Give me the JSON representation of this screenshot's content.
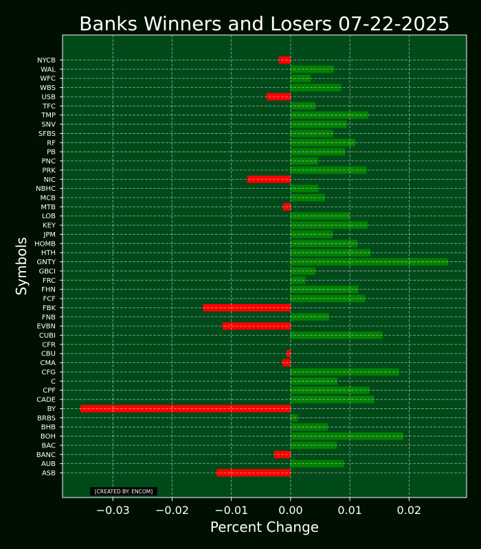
{
  "chart_data": {
    "type": "bar",
    "orientation": "horizontal",
    "title": "Banks Winners and Losers 07-22-2025",
    "xlabel": "Percent Change",
    "ylabel": "Symbols",
    "xlim": [
      -0.0385,
      0.0297
    ],
    "xticks": [
      -0.03,
      -0.02,
      -0.01,
      0.0,
      0.01,
      0.02
    ],
    "xtick_labels": [
      "−0.03",
      "−0.02",
      "−0.01",
      "0.00",
      "0.01",
      "0.02"
    ],
    "grid": true,
    "positive_color": "#008000",
    "negative_color": "#ff0000",
    "categories": [
      "ASB",
      "AUB",
      "BANC",
      "BAC",
      "BOH",
      "BHB",
      "BRBS",
      "BY",
      "CADE",
      "CPF",
      "C",
      "CFG",
      "CMA",
      "CBU",
      "CFR",
      "CUBI",
      "EVBN",
      "FNB",
      "FBK",
      "FCF",
      "FHN",
      "FRC",
      "GBCI",
      "GNTY",
      "HTH",
      "HOMB",
      "JPM",
      "KEY",
      "LOB",
      "MTB",
      "MCB",
      "NBHC",
      "NIC",
      "PRK",
      "PNC",
      "PB",
      "RF",
      "SFBS",
      "SNV",
      "TMP",
      "TFC",
      "USB",
      "WBS",
      "WFC",
      "WAL",
      "NYCB"
    ],
    "values": [
      -0.0125,
      0.009,
      -0.0028,
      0.0078,
      0.019,
      0.0063,
      0.0012,
      -0.0355,
      0.0141,
      0.0133,
      0.0079,
      0.0183,
      -0.0014,
      -0.0007,
      0.0,
      0.0155,
      -0.0115,
      0.0065,
      -0.0148,
      0.0126,
      0.0114,
      0.0025,
      0.0042,
      0.0266,
      0.0135,
      0.0113,
      0.0071,
      0.013,
      0.01,
      -0.0013,
      0.0058,
      0.0047,
      -0.0073,
      0.0128,
      0.0046,
      0.0092,
      0.0109,
      0.0072,
      0.0095,
      0.0131,
      0.0042,
      -0.0041,
      0.0085,
      0.0034,
      0.0073,
      -0.002
    ]
  },
  "credit": "[CREATED BY: ENCOM]",
  "colors": {
    "figure_bg": "#001000",
    "axes_bg": "#004a1a",
    "text": "#ffffff",
    "grid": "#cfcfcf"
  }
}
